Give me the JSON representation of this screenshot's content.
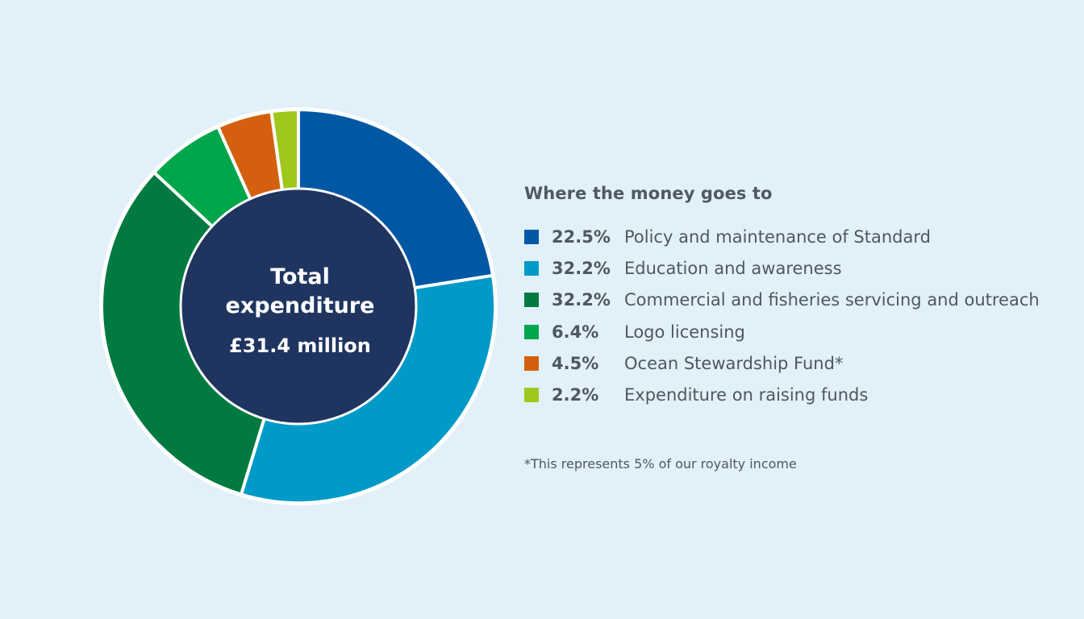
{
  "chart_data": {
    "type": "pie",
    "center": {
      "line1": "Total",
      "line2": "expenditure",
      "line3": "£31.4 million"
    },
    "legend_title": "Where the money goes to",
    "slices": [
      {
        "label": "Policy and maintenance of Standard",
        "value": 22.5,
        "value_label": "22.5%",
        "color": "#0058a5"
      },
      {
        "label": "Education and awareness",
        "value": 32.2,
        "value_label": "32.2%",
        "color": "#009ac8"
      },
      {
        "label": "Commercial and fisheries servicing and outreach",
        "value": 32.2,
        "value_label": "32.2%",
        "color": "#007a40"
      },
      {
        "label": "Logo licensing",
        "value": 6.4,
        "value_label": "6.4%",
        "color": "#00a64a"
      },
      {
        "label": "Ocean Stewardship Fund*",
        "value": 4.5,
        "value_label": "4.5%",
        "color": "#d4600f"
      },
      {
        "label": "Expenditure on raising funds",
        "value": 2.2,
        "value_label": "2.2%",
        "color": "#9fc81e"
      }
    ],
    "footnote": "*This represents 5% of our royalty income",
    "center_color": "#1f3560",
    "legend_placement": "right"
  }
}
